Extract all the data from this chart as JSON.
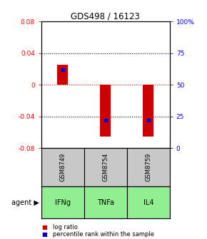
{
  "title": "GDS498 / 16123",
  "samples": [
    "GSM8749",
    "GSM8754",
    "GSM8759"
  ],
  "agents": [
    "IFNg",
    "TNFa",
    "IL4"
  ],
  "log_ratios": [
    0.025,
    -0.065,
    -0.065
  ],
  "percentile_ranks": [
    0.62,
    0.22,
    0.22
  ],
  "bar_color": "#cc0000",
  "dot_color": "#0000cc",
  "ylim_left": [
    -0.08,
    0.08
  ],
  "yticks_left": [
    -0.08,
    -0.04,
    0,
    0.04,
    0.08
  ],
  "ytick_labels_right": [
    "0",
    "25",
    "50",
    "75",
    "100%"
  ],
  "sample_bg": "#c8c8c8",
  "agent_bg": "#90ee90",
  "zero_line_color": "#cc0000",
  "bar_width": 0.25
}
